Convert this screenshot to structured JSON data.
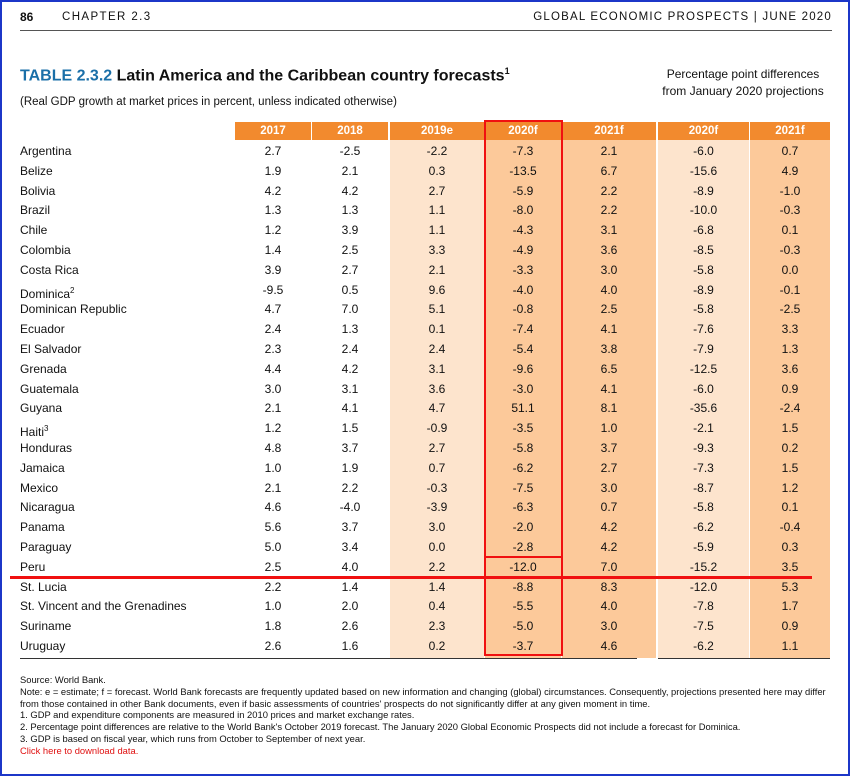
{
  "header": {
    "page_number": "86",
    "chapter": "CHAPTER 2.3",
    "report_title": "GLOBAL ECONOMIC PROSPECTS | JUNE 2020"
  },
  "title": {
    "number": "TABLE 2.3.2",
    "text": "Latin America and the Caribbean country forecasts",
    "footnote_mark": "1",
    "subtitle": "(Real GDP growth at market prices in percent, unless indicated otherwise)",
    "pp_heading": "Percentage point differences from January 2020 projections"
  },
  "colors": {
    "header_orange": "#f28a2e",
    "light_band": "#fde4cd",
    "dark_band": "#fcc99a",
    "highlight_red": "#f01010",
    "title_blue": "#1a6fa8",
    "frame_blue": "#1c36c8"
  },
  "columns": [
    "2017",
    "2018",
    "2019e",
    "2020f",
    "2021f",
    "2020f",
    "2021f"
  ],
  "rows": [
    {
      "country": "Argentina",
      "sup": "",
      "values": [
        "2.7",
        "-2.5",
        "-2.2",
        "-7.3",
        "2.1",
        "-6.0",
        "0.7"
      ]
    },
    {
      "country": "Belize",
      "sup": "",
      "values": [
        "1.9",
        "2.1",
        "0.3",
        "-13.5",
        "6.7",
        "-15.6",
        "4.9"
      ]
    },
    {
      "country": "Bolivia",
      "sup": "",
      "values": [
        "4.2",
        "4.2",
        "2.7",
        "-5.9",
        "2.2",
        "-8.9",
        "-1.0"
      ]
    },
    {
      "country": "Brazil",
      "sup": "",
      "values": [
        "1.3",
        "1.3",
        "1.1",
        "-8.0",
        "2.2",
        "-10.0",
        "-0.3"
      ]
    },
    {
      "country": "Chile",
      "sup": "",
      "values": [
        "1.2",
        "3.9",
        "1.1",
        "-4.3",
        "3.1",
        "-6.8",
        "0.1"
      ]
    },
    {
      "country": "Colombia",
      "sup": "",
      "values": [
        "1.4",
        "2.5",
        "3.3",
        "-4.9",
        "3.6",
        "-8.5",
        "-0.3"
      ]
    },
    {
      "country": "Costa Rica",
      "sup": "",
      "values": [
        "3.9",
        "2.7",
        "2.1",
        "-3.3",
        "3.0",
        "-5.8",
        "0.0"
      ]
    },
    {
      "country": "Dominica",
      "sup": "2",
      "values": [
        "-9.5",
        "0.5",
        "9.6",
        "-4.0",
        "4.0",
        "-8.9",
        "-0.1"
      ]
    },
    {
      "country": "Dominican Republic",
      "sup": "",
      "values": [
        "4.7",
        "7.0",
        "5.1",
        "-0.8",
        "2.5",
        "-5.8",
        "-2.5"
      ]
    },
    {
      "country": "Ecuador",
      "sup": "",
      "values": [
        "2.4",
        "1.3",
        "0.1",
        "-7.4",
        "4.1",
        "-7.6",
        "3.3"
      ]
    },
    {
      "country": "El Salvador",
      "sup": "",
      "values": [
        "2.3",
        "2.4",
        "2.4",
        "-5.4",
        "3.8",
        "-7.9",
        "1.3"
      ]
    },
    {
      "country": "Grenada",
      "sup": "",
      "values": [
        "4.4",
        "4.2",
        "3.1",
        "-9.6",
        "6.5",
        "-12.5",
        "3.6"
      ]
    },
    {
      "country": "Guatemala",
      "sup": "",
      "values": [
        "3.0",
        "3.1",
        "3.6",
        "-3.0",
        "4.1",
        "-6.0",
        "0.9"
      ]
    },
    {
      "country": "Guyana",
      "sup": "",
      "values": [
        "2.1",
        "4.1",
        "4.7",
        "51.1",
        "8.1",
        "-35.6",
        "-2.4"
      ]
    },
    {
      "country": "Haiti",
      "sup": "3",
      "values": [
        "1.2",
        "1.5",
        "-0.9",
        "-3.5",
        "1.0",
        "-2.1",
        "1.5"
      ]
    },
    {
      "country": "Honduras",
      "sup": "",
      "values": [
        "4.8",
        "3.7",
        "2.7",
        "-5.8",
        "3.7",
        "-9.3",
        "0.2"
      ]
    },
    {
      "country": "Jamaica",
      "sup": "",
      "values": [
        "1.0",
        "1.9",
        "0.7",
        "-6.2",
        "2.7",
        "-7.3",
        "1.5"
      ]
    },
    {
      "country": "Mexico",
      "sup": "",
      "values": [
        "2.1",
        "2.2",
        "-0.3",
        "-7.5",
        "3.0",
        "-8.7",
        "1.2"
      ]
    },
    {
      "country": "Nicaragua",
      "sup": "",
      "values": [
        "4.6",
        "-4.0",
        "-3.9",
        "-6.3",
        "0.7",
        "-5.8",
        "0.1"
      ]
    },
    {
      "country": "Panama",
      "sup": "",
      "values": [
        "5.6",
        "3.7",
        "3.0",
        "-2.0",
        "4.2",
        "-6.2",
        "-0.4"
      ]
    },
    {
      "country": "Paraguay",
      "sup": "",
      "values": [
        "5.0",
        "3.4",
        "0.0",
        "-2.8",
        "4.2",
        "-5.9",
        "0.3"
      ]
    },
    {
      "country": "Peru",
      "sup": "",
      "values": [
        "2.5",
        "4.0",
        "2.2",
        "-12.0",
        "7.0",
        "-15.2",
        "3.5"
      ]
    },
    {
      "country": "St. Lucia",
      "sup": "",
      "values": [
        "2.2",
        "1.4",
        "1.4",
        "-8.8",
        "8.3",
        "-12.0",
        "5.3"
      ]
    },
    {
      "country": "St. Vincent and the Grenadines",
      "sup": "",
      "values": [
        "1.0",
        "2.0",
        "0.4",
        "-5.5",
        "4.0",
        "-7.8",
        "1.7"
      ]
    },
    {
      "country": "Suriname",
      "sup": "",
      "values": [
        "1.8",
        "2.6",
        "2.3",
        "-5.0",
        "3.0",
        "-7.5",
        "0.9"
      ]
    },
    {
      "country": "Uruguay",
      "sup": "",
      "values": [
        "2.6",
        "1.6",
        "0.2",
        "-3.7",
        "4.6",
        "-6.2",
        "1.1"
      ]
    }
  ],
  "notes": {
    "source": "Source: World Bank.",
    "note": "Note: e = estimate; f = forecast.  World Bank forecasts are frequently updated based on new information and changing (global) circumstances. Consequently, projections presented here may differ from those contained in other Bank documents, even if basic assessments of countries' prospects do not significantly differ at any given moment in time.",
    "n1": "1. GDP and expenditure components are measured in 2010 prices and market exchange rates.",
    "n2": "2. Percentage point differences are relative to the World Bank's October 2019 forecast. The January 2020 Global Economic Prospects did not include a forecast for Dominica.",
    "n3": "3. GDP is based on fiscal year, which runs from October to September of next year.",
    "download": "Click here to download data."
  }
}
